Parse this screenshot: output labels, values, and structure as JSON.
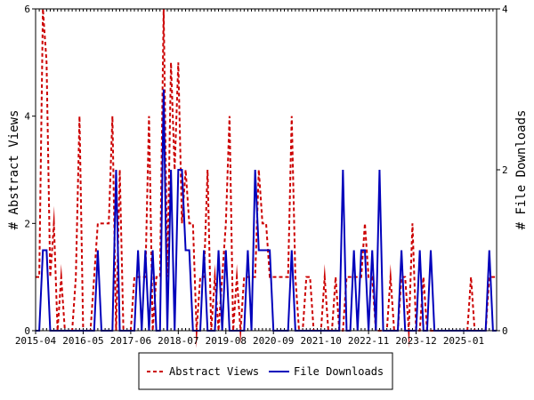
{
  "chart_data": {
    "type": "line",
    "title": "",
    "x_ticks": [
      "2015-04",
      "2016-05",
      "2017-06",
      "2018-07",
      "2019-08",
      "2020-09",
      "2021-10",
      "2022-11",
      "2023-12",
      "2025-01"
    ],
    "left_axis": {
      "label": "# Abstract Views",
      "ylim": [
        0,
        6
      ],
      "ticks": [
        "0",
        "2",
        "4",
        "6"
      ]
    },
    "right_axis": {
      "label": "# File Downloads",
      "ylim": [
        0,
        4
      ],
      "ticks": [
        "0",
        "2",
        "4"
      ]
    },
    "legend": {
      "placement": "bottom-center"
    },
    "series": [
      {
        "name": "Abstract Views",
        "axis": "left",
        "color": "#cc0000",
        "style": "dashed",
        "values": [
          1,
          1,
          6,
          5,
          1,
          2,
          0,
          1,
          0,
          0,
          0,
          1,
          4,
          0,
          0,
          0,
          1,
          2,
          2,
          2,
          2,
          4,
          0,
          3,
          0,
          0,
          0,
          1,
          1,
          1,
          1,
          4,
          0,
          1,
          1,
          6,
          1,
          5,
          3,
          5,
          2,
          3,
          2,
          2,
          0,
          1,
          1,
          3,
          0,
          1,
          0,
          1,
          2,
          4,
          0,
          1,
          0,
          1,
          1,
          1,
          1,
          3,
          2,
          2,
          1,
          1,
          1,
          1,
          1,
          1,
          4,
          1,
          0,
          0,
          1,
          1,
          0,
          0,
          0,
          1,
          0,
          0,
          1,
          0,
          0,
          1,
          1,
          1,
          1,
          1,
          2,
          1,
          1,
          0,
          0,
          0,
          0,
          1,
          0,
          0,
          1,
          1,
          0,
          2,
          0,
          0,
          1,
          0,
          0,
          0,
          0,
          0,
          0,
          0,
          0,
          0,
          0,
          0,
          0,
          1,
          0,
          0,
          0,
          0,
          1,
          1,
          1
        ]
      },
      {
        "name": "File Downloads",
        "axis": "right",
        "color": "#0000bb",
        "style": "solid",
        "values": [
          0,
          0,
          1,
          1,
          0,
          0,
          0,
          0,
          0,
          0,
          0,
          0,
          0,
          0,
          0,
          0,
          0,
          1,
          0,
          0,
          0,
          0,
          2,
          0,
          0,
          0,
          0,
          0,
          1,
          0,
          1,
          0,
          1,
          0,
          0,
          3,
          0,
          2,
          0,
          2,
          2,
          1,
          1,
          0,
          0,
          0,
          1,
          0,
          0,
          0,
          1,
          0,
          1,
          0,
          0,
          0,
          0,
          0,
          1,
          0,
          2,
          1,
          1,
          1,
          1,
          0,
          0,
          0,
          0,
          0,
          1,
          0,
          0,
          0,
          0,
          0,
          0,
          0,
          0,
          0,
          0,
          0,
          0,
          0,
          2,
          0,
          0,
          1,
          0,
          1,
          1,
          0,
          1,
          0,
          2,
          0,
          0,
          0,
          0,
          0,
          1,
          0,
          0,
          0,
          0,
          1,
          0,
          0,
          1,
          0,
          0,
          0,
          0,
          0,
          0,
          0,
          0,
          0,
          0,
          0,
          0,
          0,
          0,
          0,
          1,
          0,
          0
        ]
      }
    ]
  }
}
